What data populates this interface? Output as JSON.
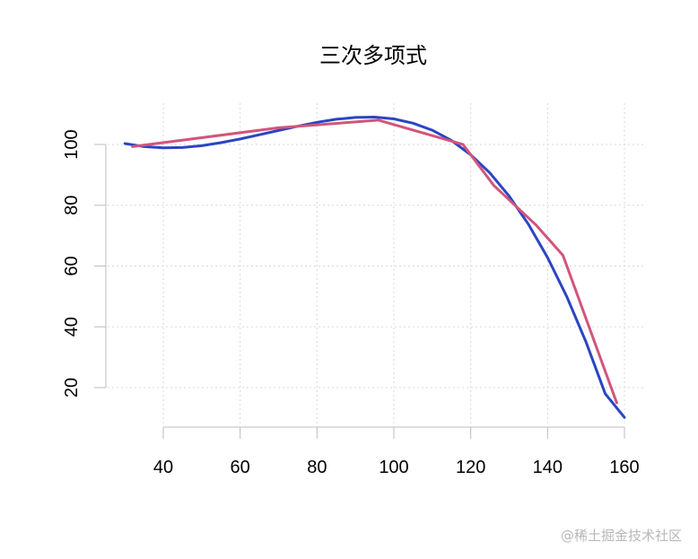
{
  "chart_data": {
    "type": "line",
    "title": "三次多项式",
    "xlabel": "",
    "ylabel": "",
    "xlim": [
      25,
      165
    ],
    "ylim": [
      5,
      115
    ],
    "x_ticks": [
      40,
      60,
      80,
      100,
      120,
      140,
      160
    ],
    "y_ticks": [
      20,
      40,
      60,
      80,
      100
    ],
    "grid": true,
    "series": [
      {
        "color": "#2a45c4",
        "style": "smooth-fit",
        "points": [
          [
            30,
            100.3
          ],
          [
            35,
            99.3
          ],
          [
            40,
            98.9
          ],
          [
            45,
            99.0
          ],
          [
            50,
            99.6
          ],
          [
            55,
            100.6
          ],
          [
            60,
            101.8
          ],
          [
            65,
            103.2
          ],
          [
            70,
            104.6
          ],
          [
            75,
            106.0
          ],
          [
            80,
            107.3
          ],
          [
            85,
            108.3
          ],
          [
            90,
            108.9
          ],
          [
            95,
            109.0
          ],
          [
            100,
            108.4
          ],
          [
            105,
            107.0
          ],
          [
            110,
            104.7
          ],
          [
            115,
            101.3
          ],
          [
            120,
            96.6
          ],
          [
            125,
            90.6
          ],
          [
            130,
            83.0
          ],
          [
            135,
            73.8
          ],
          [
            140,
            62.8
          ],
          [
            145,
            49.9
          ],
          [
            150,
            35.0
          ],
          [
            155,
            18.0
          ],
          [
            160,
            10.2
          ]
        ]
      },
      {
        "color": "#d2557a",
        "style": "observed",
        "points": [
          [
            32,
            99.3
          ],
          [
            70,
            105.5
          ],
          [
            96,
            108.0
          ],
          [
            118,
            100.0
          ],
          [
            126,
            86.5
          ],
          [
            137,
            73.5
          ],
          [
            144,
            63.5
          ],
          [
            158,
            15.0
          ]
        ]
      }
    ]
  },
  "watermark": {
    "text": "@稀土掘金技术社区"
  }
}
